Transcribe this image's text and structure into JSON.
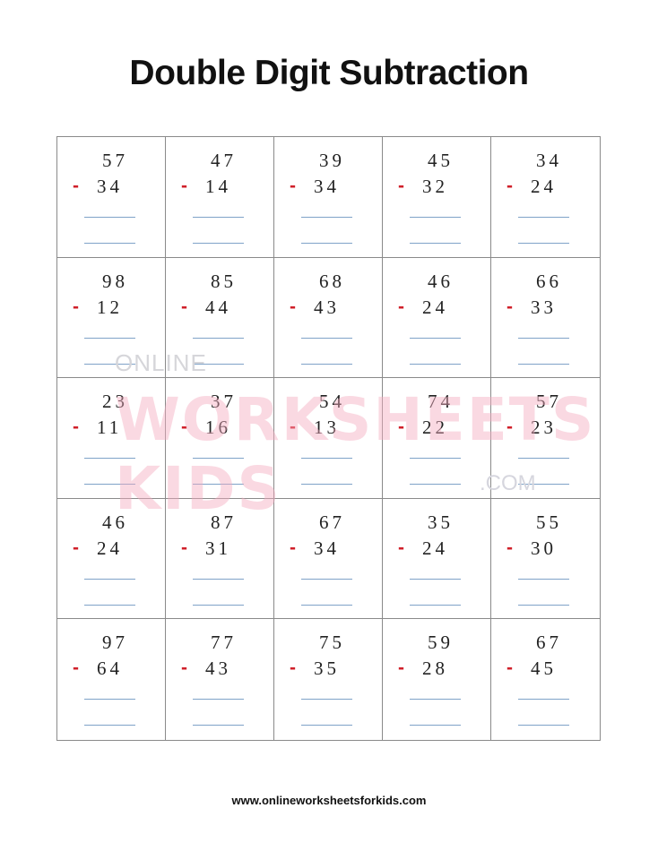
{
  "title": "Double Digit Subtraction",
  "operator": "-",
  "problems": [
    [
      {
        "top": "57",
        "bottom": "34"
      },
      {
        "top": "47",
        "bottom": "14"
      },
      {
        "top": "39",
        "bottom": "34"
      },
      {
        "top": "45",
        "bottom": "32"
      },
      {
        "top": "34",
        "bottom": "24"
      }
    ],
    [
      {
        "top": "98",
        "bottom": "12"
      },
      {
        "top": "85",
        "bottom": "44"
      },
      {
        "top": "68",
        "bottom": "43"
      },
      {
        "top": "46",
        "bottom": "24"
      },
      {
        "top": "66",
        "bottom": "33"
      }
    ],
    [
      {
        "top": "23",
        "bottom": "11"
      },
      {
        "top": "37",
        "bottom": "16"
      },
      {
        "top": "54",
        "bottom": "13"
      },
      {
        "top": "74",
        "bottom": "22"
      },
      {
        "top": "57",
        "bottom": "23"
      }
    ],
    [
      {
        "top": "46",
        "bottom": "24"
      },
      {
        "top": "87",
        "bottom": "31"
      },
      {
        "top": "67",
        "bottom": "34"
      },
      {
        "top": "35",
        "bottom": "24"
      },
      {
        "top": "55",
        "bottom": "30"
      }
    ],
    [
      {
        "top": "97",
        "bottom": "64"
      },
      {
        "top": "77",
        "bottom": "43"
      },
      {
        "top": "75",
        "bottom": "35"
      },
      {
        "top": "59",
        "bottom": "28"
      },
      {
        "top": "67",
        "bottom": "45"
      }
    ]
  ],
  "watermark": {
    "line1": "ONLINE",
    "line2": "WORKSHEETS KIDS",
    "line3": ".COM"
  },
  "footer": "www.onlineworksheetsforkids.com",
  "colors": {
    "operator": "#d0202a",
    "answer_line": "#7fa2c8",
    "grid": "#8a8a8a",
    "watermark": "#f5aabe"
  }
}
